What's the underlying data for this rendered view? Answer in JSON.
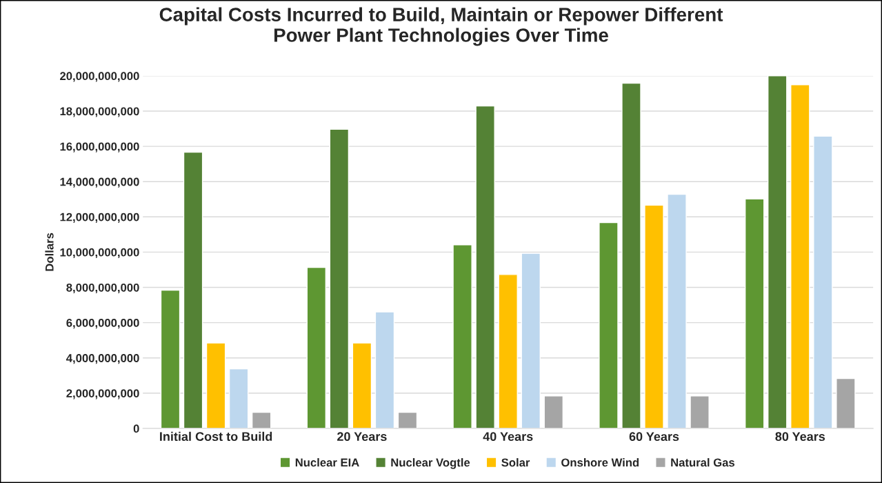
{
  "chart_data": {
    "type": "bar",
    "title": "Capital Costs Incurred to Build, Maintain or Repower Different\nPower Plant Technologies Over Time",
    "ylabel": "Dollars",
    "categories": [
      "Initial Cost to Build",
      "20 Years",
      "40 Years",
      "60 Years",
      "80 Years"
    ],
    "series": [
      {
        "name": "Nuclear EIA",
        "color": "#5e9732",
        "values": [
          7840000000,
          9130000000,
          10410000000,
          11680000000,
          13020000000
        ]
      },
      {
        "name": "Nuclear Vogtle",
        "color": "#548235",
        "values": [
          15670000000,
          16970000000,
          18290000000,
          19580000000,
          20000000000
        ]
      },
      {
        "name": "Solar",
        "color": "#ffc000",
        "values": [
          4850000000,
          4850000000,
          8730000000,
          12670000000,
          19490000000
        ]
      },
      {
        "name": "Onshore Wind",
        "color": "#bdd7ee",
        "values": [
          3380000000,
          6610000000,
          9940000000,
          13280000000,
          16580000000
        ]
      },
      {
        "name": "Natural Gas",
        "color": "#a5a5a5",
        "values": [
          910000000,
          910000000,
          1840000000,
          1840000000,
          2830000000
        ]
      }
    ],
    "ylim": [
      0,
      20000000000
    ],
    "yticks": [
      0,
      {
        "value": 2000000000,
        "label": "2,000,000,000"
      },
      {
        "value": 4000000000,
        "label": "4,000,000,000"
      },
      {
        "value": 6000000000,
        "label": "6,000,000,000"
      },
      {
        "value": 8000000000,
        "label": "8,000,000,000"
      },
      {
        "value": 10000000000,
        "label": "10,000,000,000"
      },
      {
        "value": 12000000000,
        "label": "12,000,000,000"
      },
      {
        "value": 14000000000,
        "label": "14,000,000,000"
      },
      {
        "value": 16000000000,
        "label": "16,000,000,000"
      },
      {
        "value": 18000000000,
        "label": "18,000,000,000"
      },
      {
        "value": 20000000000,
        "label": "20,000,000,000"
      }
    ],
    "grid": "y",
    "legend": "bottom"
  }
}
